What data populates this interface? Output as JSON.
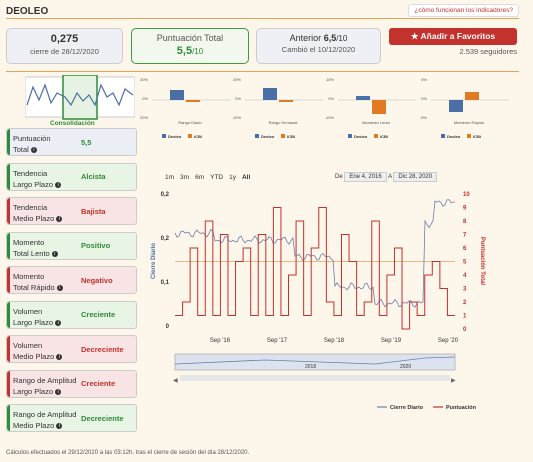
{
  "header": {
    "title": "DEOLEO",
    "help_link": "¿cómo funcionan los indicadores?"
  },
  "summary": {
    "close_value": "0,275",
    "close_label": "cierre de 28/12/2020",
    "score_label": "Puntuación Total",
    "score_value": "5,5",
    "score_suffix": "/10",
    "prev_label": "Anterior",
    "prev_value": "6,5",
    "prev_suffix": "/10",
    "prev_changed": "Cambió el 10/12/2020",
    "fav_label": "Añadir a Favoritos",
    "followers": "2.539 seguidores"
  },
  "consolidation_label": "Consolidación",
  "mini_charts": [
    {
      "caption": "Rango Diario",
      "ticks": [
        "20%",
        "0%",
        "-20%"
      ],
      "series": [
        {
          "name": "Deoleo",
          "value": 2.5,
          "color": "#4a6fa5"
        },
        {
          "name": "ICBi",
          "value": -0.5,
          "color": "#e07b24"
        }
      ]
    },
    {
      "caption": "Rango Semanal",
      "ticks": [
        "20%",
        "0%",
        "-10%"
      ],
      "series": [
        {
          "name": "Deoleo",
          "value": 3,
          "color": "#4a6fa5"
        },
        {
          "name": "ICBi",
          "value": -0.5,
          "color": "#e07b24"
        }
      ]
    },
    {
      "caption": "Momento Lento",
      "ticks": [
        "10%",
        "0%",
        "-10%"
      ],
      "series": [
        {
          "name": "Deoleo",
          "value": 1,
          "color": "#4a6fa5"
        },
        {
          "name": "ICBi",
          "value": -3.5,
          "color": "#e07b24"
        }
      ]
    },
    {
      "caption": "Momento Rápido",
      "ticks": [
        "5%",
        "0%",
        "-5%"
      ],
      "series": [
        {
          "name": "Deoleo",
          "value": -3,
          "color": "#4a6fa5"
        },
        {
          "name": "ICBi",
          "value": 2,
          "color": "#e07b24"
        }
      ]
    }
  ],
  "indicators": [
    {
      "label1": "Puntuación",
      "label2": "Total",
      "value": "5,5",
      "tone": "n"
    },
    {
      "label1": "Tendencia",
      "label2": "Largo Plazo",
      "value": "Alcista",
      "tone": "g"
    },
    {
      "label1": "Tendencia",
      "label2": "Medio Plazo",
      "value": "Bajista",
      "tone": "r"
    },
    {
      "label1": "Momento",
      "label2": "Total Lento",
      "value": "Positivo",
      "tone": "g"
    },
    {
      "label1": "Momento",
      "label2": "Total Rápido",
      "value": "Negativo",
      "tone": "r"
    },
    {
      "label1": "Volumen",
      "label2": "Largo Plazo",
      "value": "Creciente",
      "tone": "g"
    },
    {
      "label1": "Volumen",
      "label2": "Medio Plazo",
      "value": "Decreciente",
      "tone": "r"
    },
    {
      "label1": "Rango de Amplitud",
      "label2": "Largo Plazo",
      "value": "Creciente",
      "tone": "r"
    },
    {
      "label1": "Rango de Amplitud",
      "label2": "Medio Plazo",
      "value": "Decreciente",
      "tone": "g"
    }
  ],
  "range_buttons": [
    "1m",
    "3m",
    "6m",
    "YTD",
    "1y",
    "All"
  ],
  "date_from_label": "De",
  "date_from": "Ene 4, 2016",
  "date_to_label": "A",
  "date_to": "Dic 28, 2020",
  "chart_data": {
    "type": "line",
    "ylabel_left": "Cierre Diario",
    "ylabel_right": "Puntuación Total",
    "left_ticks": [
      "0,2",
      "0,2",
      "0,1",
      "0"
    ],
    "right_ticks": [
      "10",
      "9",
      "8",
      "7",
      "6",
      "5",
      "4",
      "3",
      "2",
      "1",
      "0"
    ],
    "x_ticks": [
      "Sep '16",
      "Sep '17",
      "Sep '18",
      "Sep '19",
      "Sep '20"
    ],
    "navigator_ticks": [
      "2018",
      "2020"
    ],
    "legend": [
      "Cierre Diario",
      "Puntuación"
    ]
  },
  "footer": "Cálculos efectuados el 29/12/2020 a las 03:12h. tras el cierre de sesión del día 28/12/2020."
}
